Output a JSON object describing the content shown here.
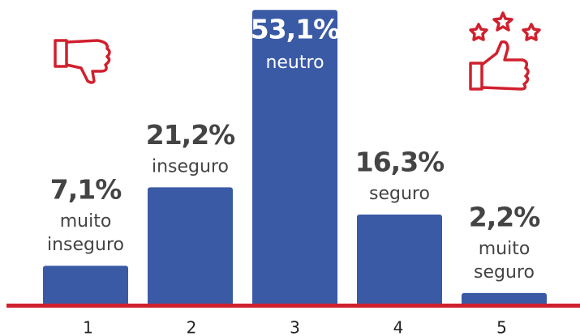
{
  "chart_data": {
    "type": "bar",
    "categories": [
      "1",
      "2",
      "3",
      "4",
      "5"
    ],
    "values": [
      7.1,
      21.2,
      53.1,
      16.3,
      2.2
    ],
    "value_labels": [
      "7,1%",
      "21,2%",
      "53,1%",
      "16,3%",
      "2,2%"
    ],
    "bar_labels": [
      [
        "muito",
        "inseguro"
      ],
      [
        "inseguro"
      ],
      [
        "neutro"
      ],
      [
        "seguro"
      ],
      [
        "muito",
        "seguro"
      ]
    ],
    "color": "#3a5aa5",
    "baseline_color": "#d0202e"
  }
}
